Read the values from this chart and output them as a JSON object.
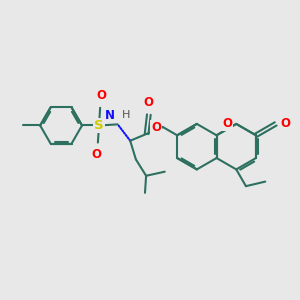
{
  "bg_color": "#e8e8e8",
  "bond_color": "#2d7060",
  "bond_width": 1.5,
  "atom_colors": {
    "O": "#ff0000",
    "N": "#1010ff",
    "S": "#cccc00",
    "H": "#555555",
    "C": "#2d7060"
  },
  "font_size": 8.5
}
